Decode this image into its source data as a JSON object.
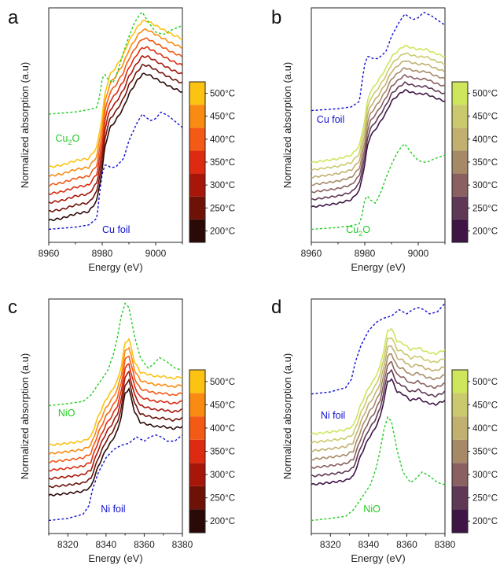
{
  "chart_data": [
    {
      "id": "a",
      "type": "line",
      "panel_label": "a",
      "xlabel": "Energy (eV)",
      "ylabel": "Normalized absorption (a.u)",
      "xlim": [
        8960,
        9010
      ],
      "xticks": [
        8960,
        8980,
        9000
      ],
      "ylim": [
        0,
        1
      ],
      "colorbar": {
        "colors": [
          "#2a0a06",
          "#6e1208",
          "#a8160a",
          "#dd2a10",
          "#f35a16",
          "#f98b12",
          "#fcc313"
        ],
        "labels": [
          "200°C",
          "250°C",
          "300°C",
          "350°C",
          "400°C",
          "450°C",
          "500°C"
        ]
      },
      "temperature_series": {
        "x": [
          8960,
          8965,
          8970,
          8975,
          8978,
          8980,
          8981,
          8982,
          8983,
          8985,
          8988,
          8990,
          8993,
          8995,
          8997,
          9000,
          9003,
          9006,
          9010
        ],
        "base": [
          0.0,
          0.01,
          0.02,
          0.04,
          0.09,
          0.23,
          0.33,
          0.38,
          0.42,
          0.45,
          0.51,
          0.57,
          0.63,
          0.66,
          0.66,
          0.64,
          0.62,
          0.6,
          0.58
        ],
        "offsets": [
          0.1,
          0.14,
          0.18,
          0.22,
          0.26,
          0.3,
          0.34
        ],
        "bump": [
          0.0,
          0.0,
          0.01,
          0.0,
          0.0,
          0.0,
          0.0,
          0.0,
          0.0,
          0.0,
          0.0,
          0.0,
          0.0,
          0.0,
          0.0,
          0.0,
          0.0,
          0.0,
          0.0
        ]
      },
      "references": [
        {
          "name": "Cu_foil",
          "color": "#1010d0",
          "label": "Cu foil",
          "x": [
            8960,
            8970,
            8975,
            8978,
            8979,
            8980,
            8981,
            8982,
            8983,
            8985,
            8988,
            8990,
            8993,
            8995,
            8998,
            9000,
            9002,
            9005,
            9008,
            9010
          ],
          "y": [
            0.06,
            0.07,
            0.08,
            0.11,
            0.22,
            0.31,
            0.35,
            0.35,
            0.34,
            0.34,
            0.38,
            0.46,
            0.54,
            0.58,
            0.55,
            0.56,
            0.59,
            0.57,
            0.54,
            0.52
          ]
        },
        {
          "name": "Cu2O",
          "color": "#22cc22",
          "label": "Cu2O",
          "x": [
            8960,
            8970,
            8975,
            8978,
            8979,
            8980,
            8981,
            8982,
            8984,
            8986,
            8988,
            8990,
            8992,
            8994,
            8995,
            8997,
            9000,
            9003,
            9006,
            9010
          ],
          "y": [
            0.58,
            0.59,
            0.6,
            0.61,
            0.66,
            0.74,
            0.76,
            0.74,
            0.72,
            0.78,
            0.86,
            0.93,
            0.99,
            1.03,
            1.04,
            1.0,
            0.95,
            0.94,
            0.96,
            0.98
          ]
        }
      ],
      "annotations": [
        {
          "text": "Cu",
          "sub": "2",
          "tail": "O",
          "color": "#22cc22",
          "ref": "Cu2O"
        },
        {
          "text": "Cu foil",
          "color": "#1010d0",
          "ref": "Cu_foil"
        }
      ]
    },
    {
      "id": "b",
      "type": "line",
      "panel_label": "b",
      "xlabel": "Energy (eV)",
      "ylabel": "Normalized absorption (a.u)",
      "xlim": [
        8960,
        9010
      ],
      "xticks": [
        8960,
        8980,
        9000
      ],
      "ylim": [
        0,
        1
      ],
      "colorbar": {
        "colors": [
          "#3e1545",
          "#5e3855",
          "#8a6060",
          "#a68a68",
          "#c2b070",
          "#cbc96e",
          "#cde65c"
        ],
        "labels": [
          "200°C",
          "250°C",
          "300°C",
          "350°C",
          "400°C",
          "450°C",
          "500°C"
        ]
      },
      "temperature_series": {
        "x": [
          8960,
          8965,
          8970,
          8975,
          8978,
          8980,
          8981,
          8982,
          8983,
          8985,
          8988,
          8990,
          8993,
          8995,
          8997,
          9000,
          9003,
          9006,
          9010
        ],
        "base": [
          0.0,
          0.01,
          0.02,
          0.04,
          0.09,
          0.23,
          0.33,
          0.38,
          0.4,
          0.44,
          0.51,
          0.57,
          0.61,
          0.63,
          0.62,
          0.61,
          0.61,
          0.59,
          0.57
        ],
        "offsets": [
          0.12,
          0.16,
          0.2,
          0.24,
          0.28,
          0.32,
          0.36
        ],
        "bump": [
          0,
          0,
          0,
          0,
          0,
          0,
          0,
          0,
          0,
          0,
          0,
          0,
          0,
          0,
          0,
          0,
          0,
          0,
          0
        ]
      },
      "references": [
        {
          "name": "Cu_foil",
          "color": "#1010d0",
          "label": "Cu foil",
          "x": [
            8960,
            8970,
            8975,
            8978,
            8979,
            8980,
            8981,
            8982,
            8983,
            8985,
            8988,
            8990,
            8993,
            8995,
            8998,
            9000,
            9002,
            9005,
            9008,
            9010
          ],
          "y": [
            0.64,
            0.65,
            0.66,
            0.69,
            0.8,
            0.89,
            0.93,
            0.93,
            0.92,
            0.92,
            0.96,
            1.04,
            1.12,
            1.16,
            1.13,
            1.14,
            1.17,
            1.15,
            1.12,
            1.1
          ]
        },
        {
          "name": "Cu2O",
          "color": "#22cc22",
          "label": "Cu2O",
          "x": [
            8960,
            8970,
            8975,
            8978,
            8979,
            8980,
            8981,
            8982,
            8984,
            8986,
            8988,
            8990,
            8992,
            8994,
            8995,
            8997,
            9000,
            9003,
            9006,
            9010
          ],
          "y": [
            0.0,
            0.01,
            0.02,
            0.03,
            0.08,
            0.16,
            0.18,
            0.16,
            0.14,
            0.2,
            0.28,
            0.35,
            0.41,
            0.45,
            0.46,
            0.42,
            0.37,
            0.36,
            0.38,
            0.4
          ]
        }
      ],
      "annotations": [
        {
          "text": "Cu foil",
          "color": "#1010d0",
          "ref": "Cu_foil"
        },
        {
          "text": "Cu",
          "sub": "2",
          "tail": "O",
          "color": "#22cc22",
          "ref": "Cu2O"
        }
      ]
    },
    {
      "id": "c",
      "type": "line",
      "panel_label": "c",
      "xlabel": "Energy (eV)",
      "ylabel": "Normalized absorption (a.u)",
      "xlim": [
        8310,
        8380
      ],
      "xticks": [
        8320,
        8340,
        8360,
        8380
      ],
      "ylim": [
        0,
        1
      ],
      "colorbar": {
        "colors": [
          "#2a0a06",
          "#6e1208",
          "#a8160a",
          "#dd2a10",
          "#f35a16",
          "#f98b12",
          "#fcc313"
        ],
        "labels": [
          "200°C",
          "250°C",
          "300°C",
          "350°C",
          "400°C",
          "450°C",
          "500°C"
        ]
      },
      "temperature_series": {
        "x": [
          8310,
          8320,
          8328,
          8332,
          8334,
          8336,
          8338,
          8340,
          8343,
          8346,
          8348,
          8350,
          8352,
          8355,
          8358,
          8362,
          8366,
          8370,
          8375,
          8380
        ],
        "base": [
          0.0,
          0.01,
          0.02,
          0.04,
          0.09,
          0.14,
          0.18,
          0.22,
          0.26,
          0.31,
          0.38,
          0.47,
          0.47,
          0.4,
          0.35,
          0.34,
          0.33,
          0.33,
          0.32,
          0.33
        ],
        "offsets": [
          0.14,
          0.18,
          0.22,
          0.26,
          0.3,
          0.34,
          0.38
        ],
        "bump": [
          0,
          0,
          0,
          0,
          0,
          0,
          0,
          0,
          0,
          0,
          0.0,
          0.02,
          0.04,
          0.0,
          0,
          0,
          0,
          0,
          0,
          0
        ]
      },
      "references": [
        {
          "name": "Ni_foil",
          "color": "#1010d0",
          "label": "Ni foil",
          "x": [
            8310,
            8320,
            8328,
            8331,
            8333,
            8336,
            8340,
            8344,
            8348,
            8352,
            8356,
            8360,
            8363,
            8366,
            8369,
            8372,
            8376,
            8380
          ],
          "y": [
            0.02,
            0.03,
            0.05,
            0.09,
            0.17,
            0.25,
            0.32,
            0.36,
            0.38,
            0.39,
            0.42,
            0.4,
            0.42,
            0.43,
            0.42,
            0.4,
            0.4,
            0.43
          ]
        },
        {
          "name": "NiO",
          "color": "#22cc22",
          "label": "NiO",
          "x": [
            8310,
            8320,
            8328,
            8332,
            8335,
            8338,
            8341,
            8344,
            8346,
            8348,
            8350,
            8352,
            8355,
            8358,
            8362,
            8365,
            8368,
            8372,
            8376,
            8380
          ],
          "y": [
            0.57,
            0.58,
            0.59,
            0.62,
            0.66,
            0.7,
            0.74,
            0.82,
            0.9,
            1.0,
            1.06,
            1.04,
            0.9,
            0.8,
            0.75,
            0.77,
            0.8,
            0.78,
            0.75,
            0.74
          ]
        }
      ],
      "annotations": [
        {
          "text": "NiO",
          "color": "#22cc22",
          "ref": "NiO"
        },
        {
          "text": "Ni foil",
          "color": "#1010d0",
          "ref": "Ni_foil"
        }
      ]
    },
    {
      "id": "d",
      "type": "line",
      "panel_label": "d",
      "xlabel": "Energy (eV)",
      "ylabel": "Normalized absorption (a.u)",
      "xlim": [
        8310,
        8380
      ],
      "xticks": [
        8320,
        8340,
        8360,
        8380
      ],
      "ylim": [
        0,
        1
      ],
      "colorbar": {
        "colors": [
          "#3e1545",
          "#5e3855",
          "#8a6060",
          "#a68a68",
          "#c2b070",
          "#cbc96e",
          "#cde65c"
        ],
        "labels": [
          "200°C",
          "250°C",
          "300°C",
          "350°C",
          "400°C",
          "450°C",
          "500°C"
        ]
      },
      "temperature_series": {
        "x": [
          8310,
          8320,
          8328,
          8332,
          8334,
          8336,
          8338,
          8340,
          8343,
          8346,
          8348,
          8350,
          8352,
          8355,
          8358,
          8362,
          8366,
          8370,
          8375,
          8380
        ],
        "base": [
          0.0,
          0.01,
          0.02,
          0.04,
          0.09,
          0.14,
          0.18,
          0.22,
          0.26,
          0.32,
          0.4,
          0.49,
          0.5,
          0.44,
          0.41,
          0.4,
          0.4,
          0.39,
          0.38,
          0.39
        ],
        "offsets": [
          0.17,
          0.21,
          0.25,
          0.29,
          0.33,
          0.37,
          0.41
        ],
        "bump": [
          0,
          0,
          0,
          0,
          0,
          0,
          0,
          0,
          0,
          0,
          0,
          0,
          0,
          0,
          0.02,
          0,
          0.01,
          0,
          0,
          0.01
        ]
      },
      "references": [
        {
          "name": "Ni_foil",
          "color": "#1010d0",
          "label": "Ni foil",
          "x": [
            8310,
            8320,
            8328,
            8331,
            8333,
            8336,
            8340,
            8344,
            8348,
            8352,
            8356,
            8360,
            8363,
            8366,
            8369,
            8372,
            8376,
            8380
          ],
          "y": [
            0.6,
            0.61,
            0.63,
            0.67,
            0.75,
            0.83,
            0.9,
            0.94,
            0.96,
            0.97,
            1.0,
            0.98,
            1.0,
            1.01,
            1.0,
            0.98,
            0.99,
            1.03
          ]
        },
        {
          "name": "NiO",
          "color": "#22cc22",
          "label": "NiO",
          "x": [
            8310,
            8320,
            8328,
            8332,
            8335,
            8338,
            8341,
            8344,
            8346,
            8348,
            8350,
            8352,
            8355,
            8358,
            8362,
            8365,
            8368,
            8372,
            8376,
            8380
          ],
          "y": [
            0.0,
            0.01,
            0.02,
            0.05,
            0.09,
            0.13,
            0.17,
            0.25,
            0.33,
            0.43,
            0.49,
            0.47,
            0.33,
            0.23,
            0.18,
            0.2,
            0.23,
            0.21,
            0.18,
            0.17
          ]
        }
      ],
      "annotations": [
        {
          "text": "Ni foil",
          "color": "#1010d0",
          "ref": "Ni_foil"
        },
        {
          "text": "NiO",
          "color": "#22cc22",
          "ref": "NiO"
        }
      ]
    }
  ]
}
